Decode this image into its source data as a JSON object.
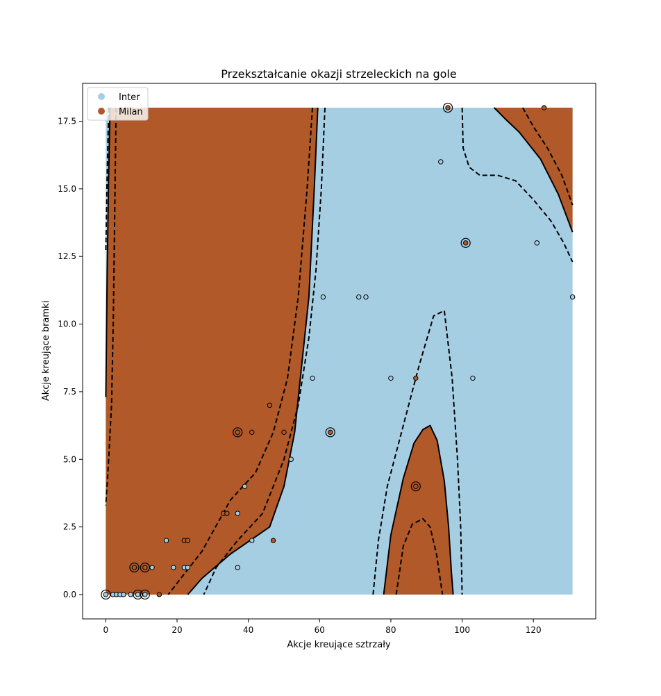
{
  "chart_data": {
    "type": "scatter",
    "title": "Przekształcanie okazji strzeleckich na gole",
    "xlabel": "Akcje kreujące sztrzały",
    "ylabel": "Akcje kreujące bramki",
    "xlim": [
      -6.5,
      137.5
    ],
    "ylim": [
      -0.9,
      18.9
    ],
    "xticks": [
      0,
      20,
      40,
      60,
      80,
      100,
      120
    ],
    "yticks": [
      0.0,
      2.5,
      5.0,
      7.5,
      10.0,
      12.5,
      15.0,
      17.5
    ],
    "xtick_labels": [
      "0",
      "20",
      "40",
      "60",
      "80",
      "100",
      "120"
    ],
    "ytick_labels": [
      "0.0",
      "2.5",
      "5.0",
      "7.5",
      "10.0",
      "12.5",
      "15.0",
      "17.5"
    ],
    "grid": false,
    "legend_placement": "upper-left",
    "colors": {
      "Inter": "#a6cee3",
      "Milan": "#b15928"
    },
    "background_decision_regions": {
      "domain_x": [
        0,
        131
      ],
      "domain_y": [
        0,
        18
      ],
      "default_class": "Inter",
      "milan_regions": [
        [
          [
            0,
            18
          ],
          [
            59.5,
            18
          ],
          [
            58.5,
            15
          ],
          [
            57,
            11
          ],
          [
            55,
            8.5
          ],
          [
            53,
            6
          ],
          [
            50,
            4
          ],
          [
            46,
            2.5
          ],
          [
            35,
            1.5
          ],
          [
            27,
            0.6
          ],
          [
            23,
            0
          ],
          [
            0,
            0
          ],
          [
            0,
            7.3
          ],
          [
            0.4,
            12
          ],
          [
            0.8,
            15.5
          ],
          [
            1.2,
            18
          ]
        ],
        [
          [
            78,
            0
          ],
          [
            80,
            2.2
          ],
          [
            83.5,
            4.3
          ],
          [
            86.5,
            5.6
          ],
          [
            89,
            6.1
          ],
          [
            91,
            6.25
          ],
          [
            93,
            5.7
          ],
          [
            95,
            4.2
          ],
          [
            96.2,
            2.5
          ],
          [
            97,
            0.8
          ],
          [
            97.5,
            0
          ]
        ],
        [
          [
            109,
            18
          ],
          [
            131,
            18
          ],
          [
            131,
            13.4
          ],
          [
            127,
            14.8
          ],
          [
            122,
            16.1
          ],
          [
            116,
            17.1
          ],
          [
            112,
            17.6
          ]
        ]
      ],
      "boundary_lines": [
        [
          [
            1.2,
            18
          ],
          [
            0.8,
            15.5
          ],
          [
            0.4,
            12
          ],
          [
            0,
            7.3
          ]
        ],
        [
          [
            59.5,
            18
          ],
          [
            58.5,
            15
          ],
          [
            57,
            11
          ],
          [
            55,
            8.5
          ],
          [
            53,
            6
          ],
          [
            50,
            4
          ],
          [
            46,
            2.5
          ],
          [
            35,
            1.5
          ],
          [
            27,
            0.6
          ],
          [
            23,
            0
          ]
        ],
        [
          [
            78,
            0
          ],
          [
            80,
            2.2
          ],
          [
            83.5,
            4.3
          ],
          [
            86.5,
            5.6
          ],
          [
            89,
            6.1
          ],
          [
            91,
            6.25
          ],
          [
            93,
            5.7
          ],
          [
            95,
            4.2
          ],
          [
            96.2,
            2.5
          ],
          [
            97,
            0.8
          ],
          [
            97.5,
            0
          ]
        ],
        [
          [
            109,
            18
          ],
          [
            112,
            17.6
          ],
          [
            116,
            17.1
          ],
          [
            122,
            16.1
          ],
          [
            127,
            14.8
          ],
          [
            131,
            13.4
          ]
        ]
      ],
      "margin_lines": [
        [
          [
            0.8,
            18
          ],
          [
            0.3,
            15
          ],
          [
            0,
            12.7
          ]
        ],
        [
          [
            2.9,
            18
          ],
          [
            2.6,
            15
          ],
          [
            2.1,
            10
          ],
          [
            1.6,
            7
          ],
          [
            0.8,
            5
          ],
          [
            0,
            3.3
          ]
        ],
        [
          [
            58,
            18
          ],
          [
            56.5,
            15
          ],
          [
            54,
            11
          ],
          [
            51,
            8
          ],
          [
            47,
            6
          ],
          [
            42,
            4.5
          ],
          [
            35,
            3.5
          ],
          [
            27,
            1.6
          ],
          [
            17.5,
            0
          ]
        ],
        [
          [
            61.5,
            18
          ],
          [
            60.5,
            15
          ],
          [
            59,
            12
          ],
          [
            57,
            9.5
          ],
          [
            54,
            7
          ],
          [
            50,
            5
          ],
          [
            44,
            3
          ],
          [
            37,
            2
          ],
          [
            31,
            1
          ],
          [
            27.5,
            0
          ]
        ],
        [
          [
            75,
            0
          ],
          [
            76.5,
            2
          ],
          [
            79,
            4
          ],
          [
            84,
            6.5
          ],
          [
            88,
            8.5
          ],
          [
            92,
            10.3
          ],
          [
            95,
            10.5
          ],
          [
            97.2,
            8
          ],
          [
            98.7,
            5
          ],
          [
            99.6,
            2.5
          ],
          [
            100,
            0
          ]
        ],
        [
          [
            81.5,
            0
          ],
          [
            83.5,
            1.8
          ],
          [
            86,
            2.6
          ],
          [
            89,
            2.8
          ],
          [
            91,
            2.5
          ],
          [
            92.8,
            1.5
          ],
          [
            94.5,
            0
          ]
        ],
        [
          [
            100,
            18
          ],
          [
            100.3,
            16.5
          ],
          [
            102,
            15.8
          ],
          [
            105,
            15.5
          ],
          [
            110,
            15.5
          ],
          [
            115,
            15.3
          ],
          [
            120,
            14.6
          ],
          [
            125,
            13.8
          ],
          [
            128.5,
            13
          ],
          [
            131,
            12.3
          ]
        ],
        [
          [
            117,
            18
          ],
          [
            120,
            17.3
          ],
          [
            124,
            16.5
          ],
          [
            128,
            15.5
          ],
          [
            131,
            14.4
          ]
        ]
      ]
    },
    "points": [
      {
        "x": 0,
        "y": 0,
        "team": "Inter",
        "sv": true
      },
      {
        "x": 2,
        "y": 0,
        "team": "Inter",
        "sv": false
      },
      {
        "x": 3,
        "y": 0,
        "team": "Inter",
        "sv": false
      },
      {
        "x": 4,
        "y": 0,
        "team": "Inter",
        "sv": false
      },
      {
        "x": 5,
        "y": 0,
        "team": "Inter",
        "sv": false
      },
      {
        "x": 7,
        "y": 0,
        "team": "Inter",
        "sv": false
      },
      {
        "x": 9,
        "y": 0,
        "team": "Inter",
        "sv": true
      },
      {
        "x": 11,
        "y": 0,
        "team": "Inter",
        "sv": true
      },
      {
        "x": 15,
        "y": 0,
        "team": "Milan",
        "sv": false
      },
      {
        "x": 8,
        "y": 1,
        "team": "Milan",
        "sv": true
      },
      {
        "x": 11,
        "y": 1,
        "team": "Milan",
        "sv": true
      },
      {
        "x": 13,
        "y": 1,
        "team": "Inter",
        "sv": false
      },
      {
        "x": 19,
        "y": 1,
        "team": "Inter",
        "sv": false
      },
      {
        "x": 22,
        "y": 1,
        "team": "Inter",
        "sv": false
      },
      {
        "x": 23,
        "y": 1,
        "team": "Inter",
        "sv": false
      },
      {
        "x": 37,
        "y": 1,
        "team": "Inter",
        "sv": false
      },
      {
        "x": 17,
        "y": 2,
        "team": "Inter",
        "sv": false
      },
      {
        "x": 22,
        "y": 2,
        "team": "Milan",
        "sv": false
      },
      {
        "x": 23,
        "y": 2,
        "team": "Milan",
        "sv": false
      },
      {
        "x": 41,
        "y": 2,
        "team": "Inter",
        "sv": false
      },
      {
        "x": 47,
        "y": 2,
        "team": "Milan",
        "sv": false
      },
      {
        "x": 33,
        "y": 3,
        "team": "Milan",
        "sv": false
      },
      {
        "x": 34,
        "y": 3,
        "team": "Milan",
        "sv": false
      },
      {
        "x": 37,
        "y": 3,
        "team": "Inter",
        "sv": false
      },
      {
        "x": 39,
        "y": 4,
        "team": "Inter",
        "sv": false
      },
      {
        "x": 37,
        "y": 6,
        "team": "Milan",
        "sv": true
      },
      {
        "x": 41,
        "y": 6,
        "team": "Milan",
        "sv": false
      },
      {
        "x": 50,
        "y": 6,
        "team": "Milan",
        "sv": false
      },
      {
        "x": 63,
        "y": 6,
        "team": "Milan",
        "sv": true
      },
      {
        "x": 52,
        "y": 5,
        "team": "Inter",
        "sv": false
      },
      {
        "x": 46,
        "y": 7,
        "team": "Milan",
        "sv": false
      },
      {
        "x": 58,
        "y": 8,
        "team": "Inter",
        "sv": false
      },
      {
        "x": 80,
        "y": 8,
        "team": "Inter",
        "sv": false
      },
      {
        "x": 87,
        "y": 8,
        "team": "Milan",
        "sv": false
      },
      {
        "x": 103,
        "y": 8,
        "team": "Inter",
        "sv": false
      },
      {
        "x": 87,
        "y": 4,
        "team": "Milan",
        "sv": true
      },
      {
        "x": 61,
        "y": 11,
        "team": "Inter",
        "sv": false
      },
      {
        "x": 71,
        "y": 11,
        "team": "Inter",
        "sv": false
      },
      {
        "x": 73,
        "y": 11,
        "team": "Inter",
        "sv": false
      },
      {
        "x": 131,
        "y": 11,
        "team": "Inter",
        "sv": false
      },
      {
        "x": 101,
        "y": 13,
        "team": "Milan",
        "sv": true
      },
      {
        "x": 121,
        "y": 13,
        "team": "Inter",
        "sv": false
      },
      {
        "x": 94,
        "y": 16,
        "team": "Inter",
        "sv": false
      },
      {
        "x": 96,
        "y": 18,
        "team": "Milan",
        "sv": true
      },
      {
        "x": 123,
        "y": 18,
        "team": "Milan",
        "sv": false
      }
    ],
    "legend": [
      "Inter",
      "Milan"
    ]
  }
}
